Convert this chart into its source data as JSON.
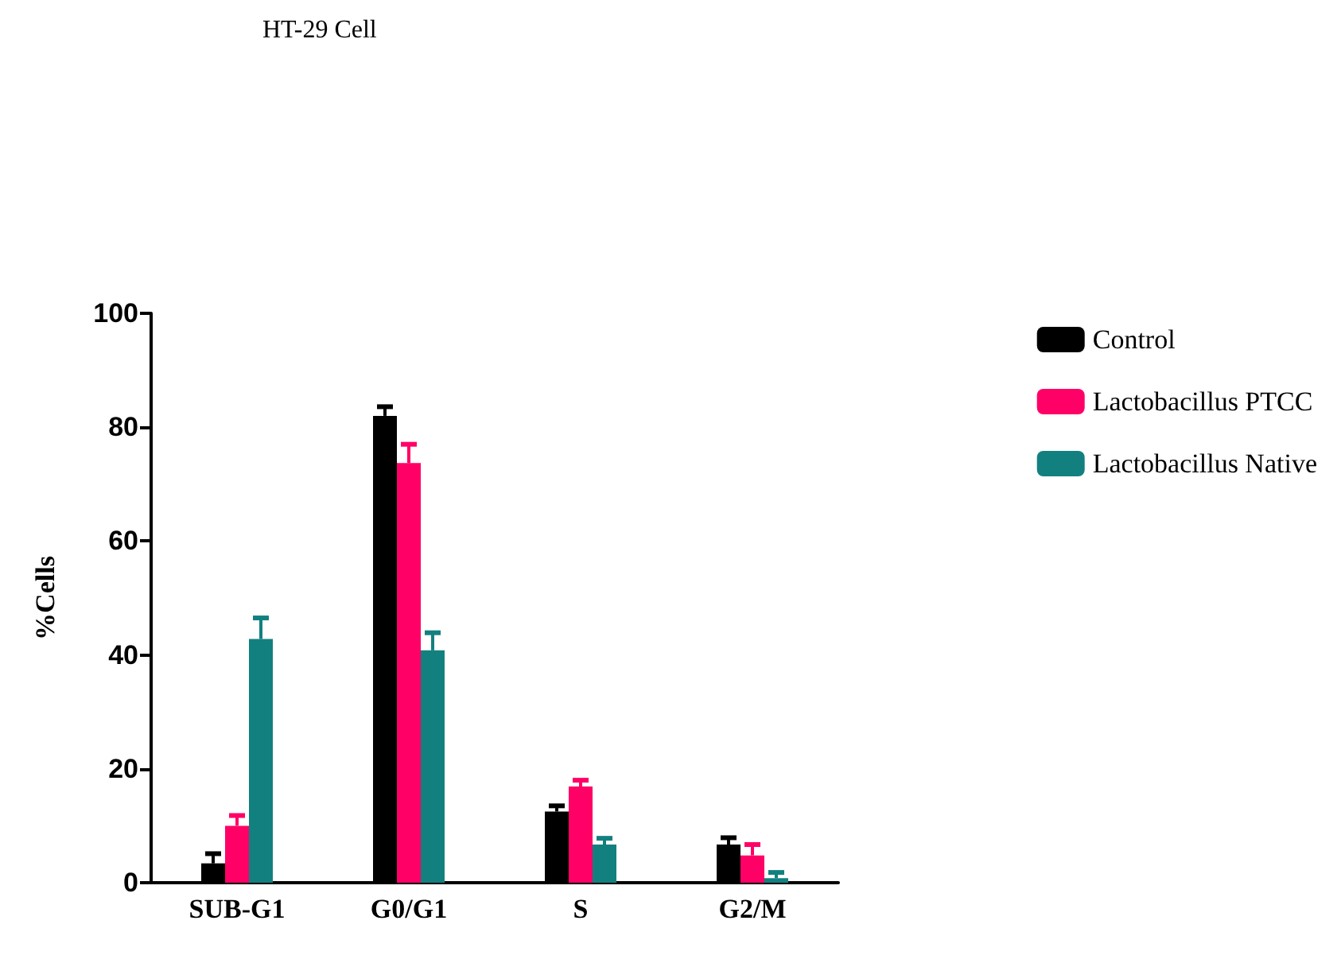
{
  "chart_data": {
    "type": "bar",
    "title": "HT-29 Cell",
    "ylabel": "%Cells",
    "categories": [
      "SUB-G1",
      "G0/G1",
      "S",
      "G2/M"
    ],
    "series": [
      {
        "name": "Control",
        "color": "#000000",
        "values": [
          3.4,
          82,
          12.5,
          6.7
        ],
        "errors": [
          [
            3.4,
            5.1
          ],
          [
            82,
            83.6
          ],
          [
            12.5,
            13.5
          ],
          [
            6.7,
            7.9
          ]
        ]
      },
      {
        "name": "Lactobacillus PTCC",
        "color": "#ff0066",
        "values": [
          10,
          73.7,
          16.9,
          4.8
        ],
        "errors": [
          [
            10,
            11.8
          ],
          [
            73.7,
            77
          ],
          [
            16.9,
            18
          ],
          [
            4.8,
            6.7
          ]
        ]
      },
      {
        "name": "Lactobacillus Native",
        "color": "#138080",
        "values": [
          42.8,
          40.8,
          6.7,
          0.8
        ],
        "errors": [
          [
            42.8,
            46.5
          ],
          [
            40.8,
            43.9
          ],
          [
            6.7,
            7.8
          ],
          [
            0.8,
            1.8
          ]
        ]
      }
    ],
    "ylim": [
      0,
      100
    ],
    "yticks": [
      0,
      20,
      40,
      60,
      80,
      100
    ],
    "grid": false,
    "legend": "right"
  }
}
